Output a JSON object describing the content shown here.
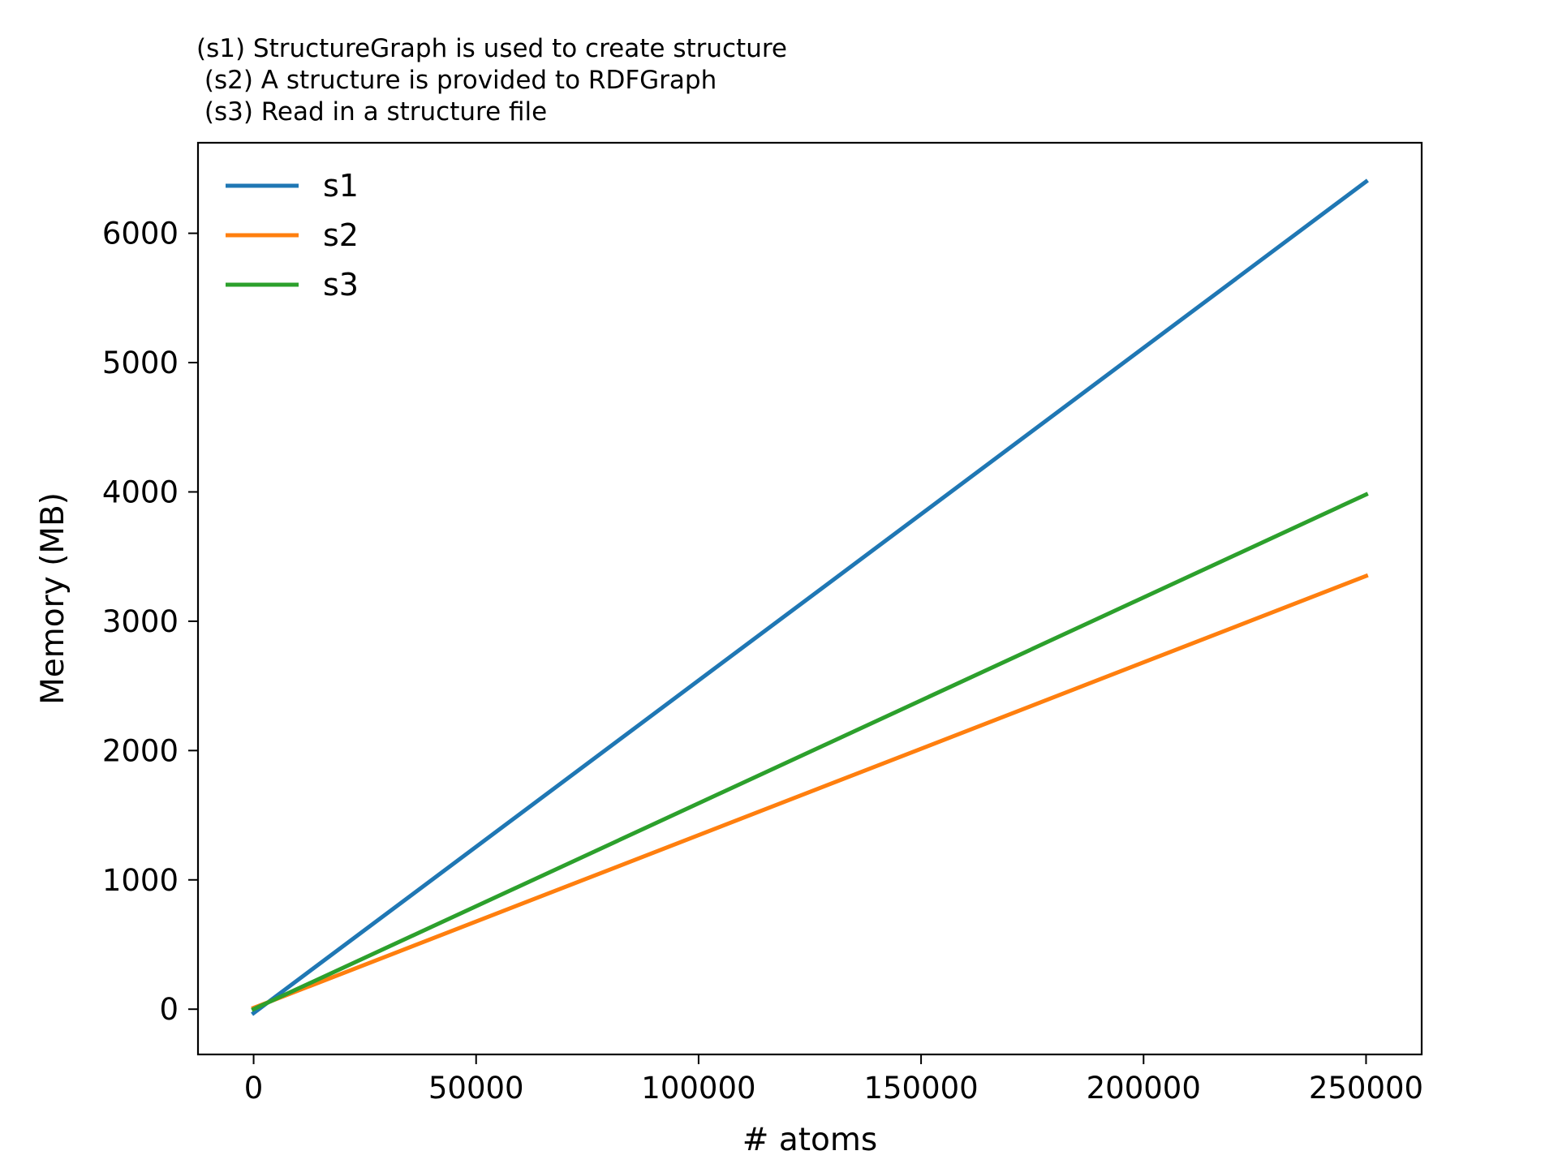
{
  "chart_data": {
    "type": "line",
    "title_lines": [
      "(s1) StructureGraph is used to create structure",
      " (s2) A structure is provided to RDFGraph",
      " (s3) Read in a structure file"
    ],
    "xlabel": "# atoms",
    "ylabel": "Memory (MB)",
    "xlim": [
      -12500,
      262500
    ],
    "ylim": [
      -350,
      6700
    ],
    "x_ticks": [
      0,
      50000,
      100000,
      150000,
      200000,
      250000
    ],
    "x_tick_labels": [
      "0",
      "50000",
      "100000",
      "150000",
      "200000",
      "250000"
    ],
    "y_ticks": [
      0,
      1000,
      2000,
      3000,
      4000,
      5000,
      6000
    ],
    "y_tick_labels": [
      "0",
      "1000",
      "2000",
      "3000",
      "4000",
      "5000",
      "6000"
    ],
    "grid": false,
    "legend_position": "top-left",
    "series": [
      {
        "name": "s1",
        "color": "#1f77b4",
        "x": [
          0,
          250000
        ],
        "y": [
          -30,
          6400
        ]
      },
      {
        "name": "s2",
        "color": "#ff7f0e",
        "x": [
          0,
          250000
        ],
        "y": [
          10,
          3350
        ]
      },
      {
        "name": "s3",
        "color": "#2ca02c",
        "x": [
          0,
          250000
        ],
        "y": [
          0,
          3980
        ]
      }
    ]
  }
}
